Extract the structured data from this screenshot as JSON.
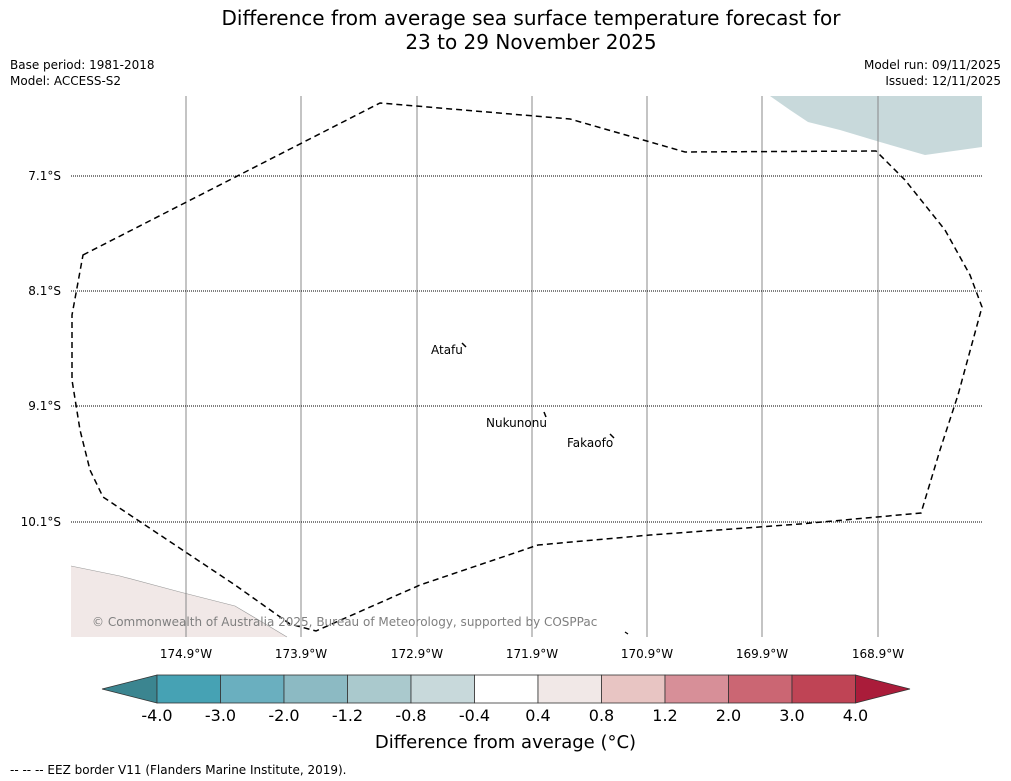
{
  "title_line1": "Difference from average sea surface temperature forecast for",
  "title_line2": "23 to 29 November 2025",
  "base_period": "Base period: 1981-2018",
  "model": "Model: ACCESS-S2",
  "model_run": "Model run: 09/11/2025",
  "issued": "Issued: 12/11/2025",
  "lat_labels": [
    "7.1°S",
    "8.1°S",
    "9.1°S",
    "10.1°S"
  ],
  "lon_labels": [
    "174.9°W",
    "173.9°W",
    "172.9°W",
    "171.9°W",
    "170.9°W",
    "169.9°W",
    "168.9°W"
  ],
  "places": {
    "atafu": "Atafu",
    "nukunonu": "Nukunonu",
    "fakaofo": "Fakaofo"
  },
  "copyright": "© Commonwealth of Australia 2025, Bureau of Meteorology, supported by COSPPac",
  "colorbar": {
    "ticks": [
      "-4.0",
      "-3.0",
      "-2.0",
      "-1.2",
      "-0.8",
      "-0.4",
      "0.4",
      "0.8",
      "1.2",
      "2.0",
      "3.0",
      "4.0"
    ],
    "colors": [
      "#3b8590",
      "#46a2b4",
      "#6aafbf",
      "#8cbac3",
      "#aac9cd",
      "#c8d9db",
      "#ffffff",
      "#f1e8e7",
      "#e8c5c3",
      "#d78f98",
      "#cb6673",
      "#bf4455",
      "#aa1c3a"
    ],
    "title": "Difference from average (°C)"
  },
  "footnote": "--  --  -- EEZ border V11 (Flanders Marine Institute, 2019)."
}
